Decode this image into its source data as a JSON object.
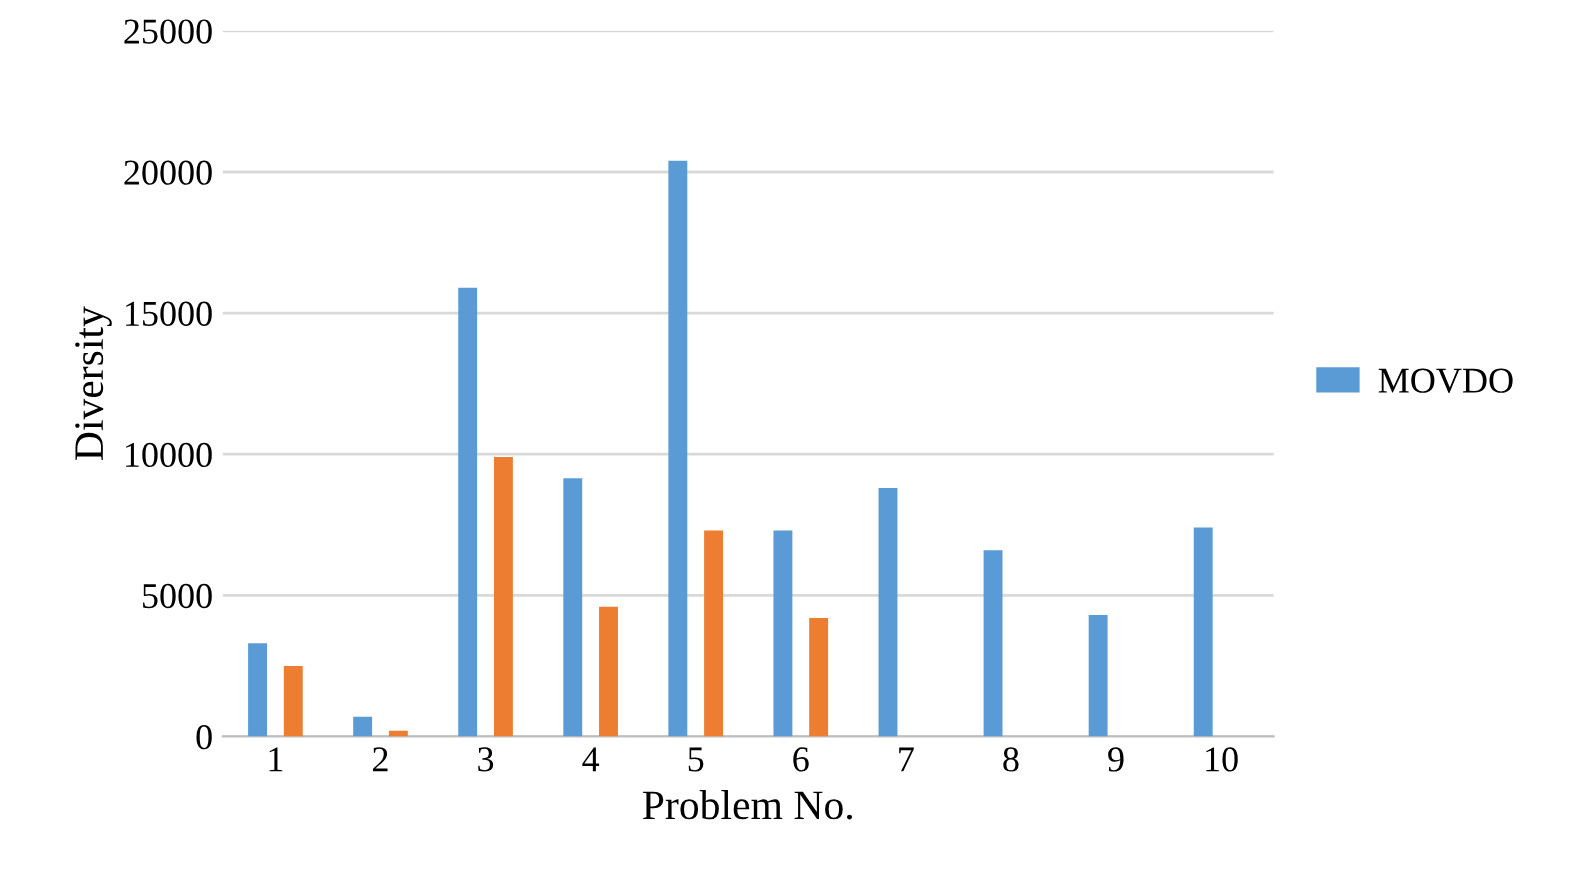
{
  "chart_data": {
    "type": "bar",
    "xlabel": "Problem No.",
    "ylabel": "Diversity",
    "categories": [
      "1",
      "2",
      "3",
      "4",
      "5",
      "6",
      "7",
      "8",
      "9",
      "10"
    ],
    "series": [
      {
        "name": "MOVDO",
        "color": "#5b9bd5",
        "values": [
          3300,
          700,
          15900,
          9150,
          20400,
          7300,
          8800,
          6600,
          4300,
          7400
        ]
      },
      {
        "color": "#ed7d31",
        "values": [
          2500,
          200,
          9900,
          4600,
          7300,
          4200,
          null,
          null,
          null,
          null
        ]
      }
    ],
    "ylim": [
      0,
      25000
    ],
    "yticks": [
      0,
      5000,
      10000,
      15000,
      20000,
      25000
    ],
    "grid": "y",
    "legend": "right"
  }
}
